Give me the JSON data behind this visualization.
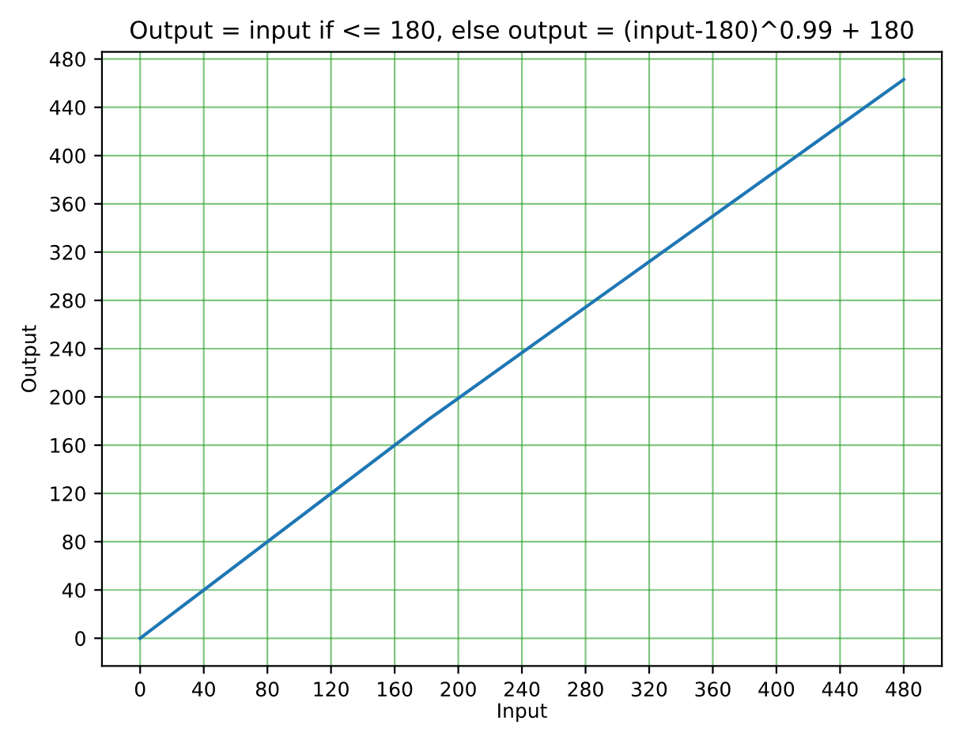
{
  "chart_data": {
    "type": "line",
    "title": "Output = input if <= 180, else output = (input-180)^0.99 + 180",
    "xlabel": "Input",
    "ylabel": "Output",
    "x": [
      0,
      180,
      480
    ],
    "series": [
      {
        "color": "#1f77b4",
        "values": [
          0,
          180,
          463
        ]
      }
    ],
    "xlim": [
      -24,
      504
    ],
    "ylim": [
      -23,
      486
    ],
    "xticks": [
      0,
      40,
      80,
      120,
      160,
      200,
      240,
      280,
      320,
      360,
      400,
      440,
      480
    ],
    "yticks": [
      0,
      40,
      80,
      120,
      160,
      200,
      240,
      280,
      320,
      360,
      400,
      440,
      480
    ],
    "grid": true
  }
}
